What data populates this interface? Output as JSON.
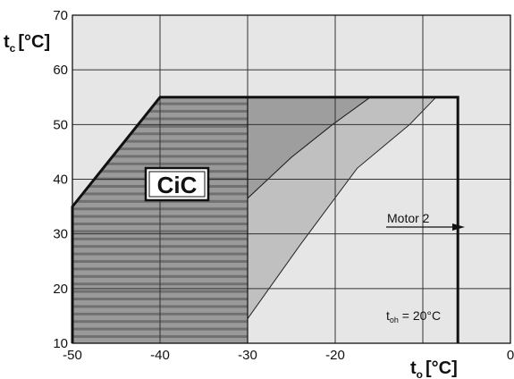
{
  "chart_data": {
    "type": "area",
    "x": {
      "label_main": "t",
      "label_sub": "o",
      "label_unit": "[°C]",
      "range": [
        -50,
        0
      ],
      "ticks": [
        "-50",
        "-40",
        "-30",
        "-20",
        "0"
      ]
    },
    "y": {
      "label_main": "t",
      "label_sub": "c",
      "label_unit": "[°C]",
      "range": [
        10,
        70
      ],
      "ticks": [
        "10",
        "20",
        "30",
        "40",
        "50",
        "60",
        "70"
      ]
    },
    "grid": true,
    "regions": [
      {
        "kind": "hatched",
        "polygon": [
          [
            -50,
            10
          ],
          [
            -50,
            35
          ],
          [
            -40,
            55
          ],
          [
            -30,
            55
          ],
          [
            -30,
            10
          ]
        ]
      },
      {
        "kind": "dark-shaded",
        "polygon": [
          [
            -30,
            10
          ],
          [
            -30,
            55
          ],
          [
            -16,
            55
          ],
          [
            -20.3,
            50
          ],
          [
            -25,
            44
          ],
          [
            -30,
            36.5
          ]
        ]
      },
      {
        "kind": "mid-shaded",
        "polygon": [
          [
            -30,
            36.5
          ],
          [
            -25,
            44
          ],
          [
            -20.3,
            50
          ],
          [
            -16,
            55
          ],
          [
            -8.5,
            55
          ],
          [
            -11.5,
            50
          ],
          [
            -17.5,
            42
          ],
          [
            -24,
            28
          ],
          [
            -30,
            14.5
          ]
        ]
      }
    ],
    "envelope": [
      [
        -50,
        10
      ],
      [
        -50,
        35
      ],
      [
        -40,
        55
      ],
      [
        -6,
        55
      ],
      [
        -6,
        10
      ]
    ],
    "labels": {
      "logo": "CiC",
      "motor": "Motor 2",
      "toh_main": "t",
      "toh_sub": "oh",
      "toh_rest": " = 20°C"
    },
    "colors": {
      "background": "#e6e6e6",
      "hatched_fill": "#9a9a9a",
      "hatch_line": "#707070",
      "dark_fill": "#9e9e9e",
      "mid_fill": "#c0c0c0",
      "grid": "#333333",
      "envelope": "#111111"
    }
  }
}
